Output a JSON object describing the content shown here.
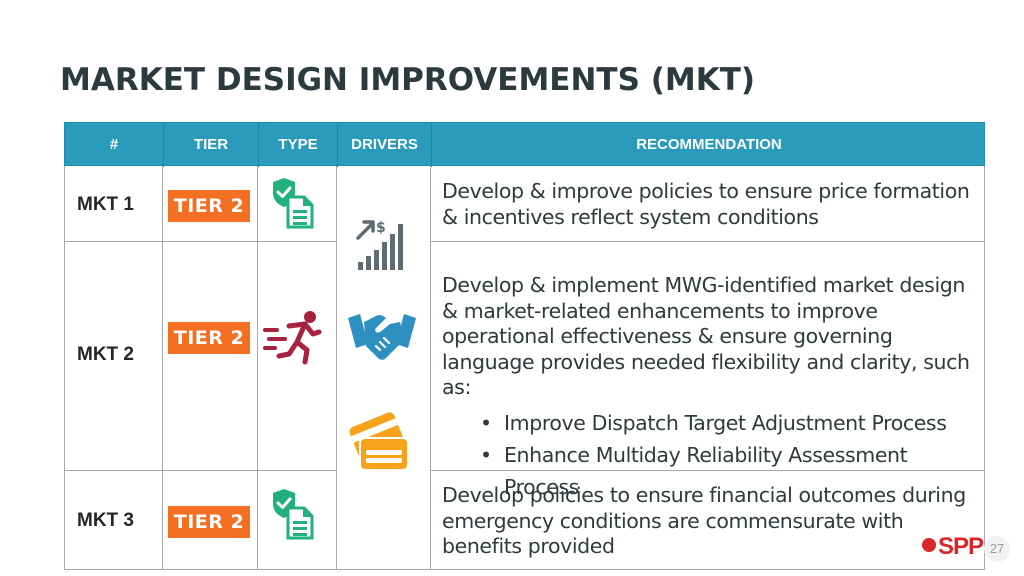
{
  "title": "MARKET DESIGN IMPROVEMENTS (MKT)",
  "headers": [
    "#",
    "TIER",
    "TYPE",
    "DRIVERS",
    "RECOMMENDATION"
  ],
  "rows": [
    {
      "id": "MKT 1",
      "tier": "TIER 2",
      "type_icon": "compliance-document-icon",
      "recommendation": "Develop & improve policies to ensure price formation & incentives reflect system conditions",
      "bullets": []
    },
    {
      "id": "MKT 2",
      "tier": "TIER 2",
      "type_icon": "running-person-icon",
      "recommendation": "Develop & implement MWG-identified market design & market-related enhancements to improve operational effectiveness & ensure governing language provides needed flexibility and clarity, such as:",
      "bullets": [
        "Improve Dispatch Target Adjustment Process",
        "Enhance Multiday Reliability Assessment Process"
      ]
    },
    {
      "id": "MKT 3",
      "tier": "TIER 2",
      "type_icon": "compliance-document-icon",
      "recommendation": "Develop policies to ensure financial outcomes during emergency conditions are commensurate with benefits provided",
      "bullets": []
    }
  ],
  "drivers_icons": [
    "price-growth-chart-icon",
    "handshake-icon",
    "payment-cards-icon"
  ],
  "logo": "SPP",
  "page_number": "27",
  "colors": {
    "header_bg": "#2a9bbb",
    "tier_badge": "#f36f21",
    "type_icon_green": "#22b07d",
    "running_icon": "#a8213f",
    "handshake_blue": "#2e8fc1",
    "cards_orange": "#f7a21b",
    "chart_gray": "#5f6b72"
  }
}
